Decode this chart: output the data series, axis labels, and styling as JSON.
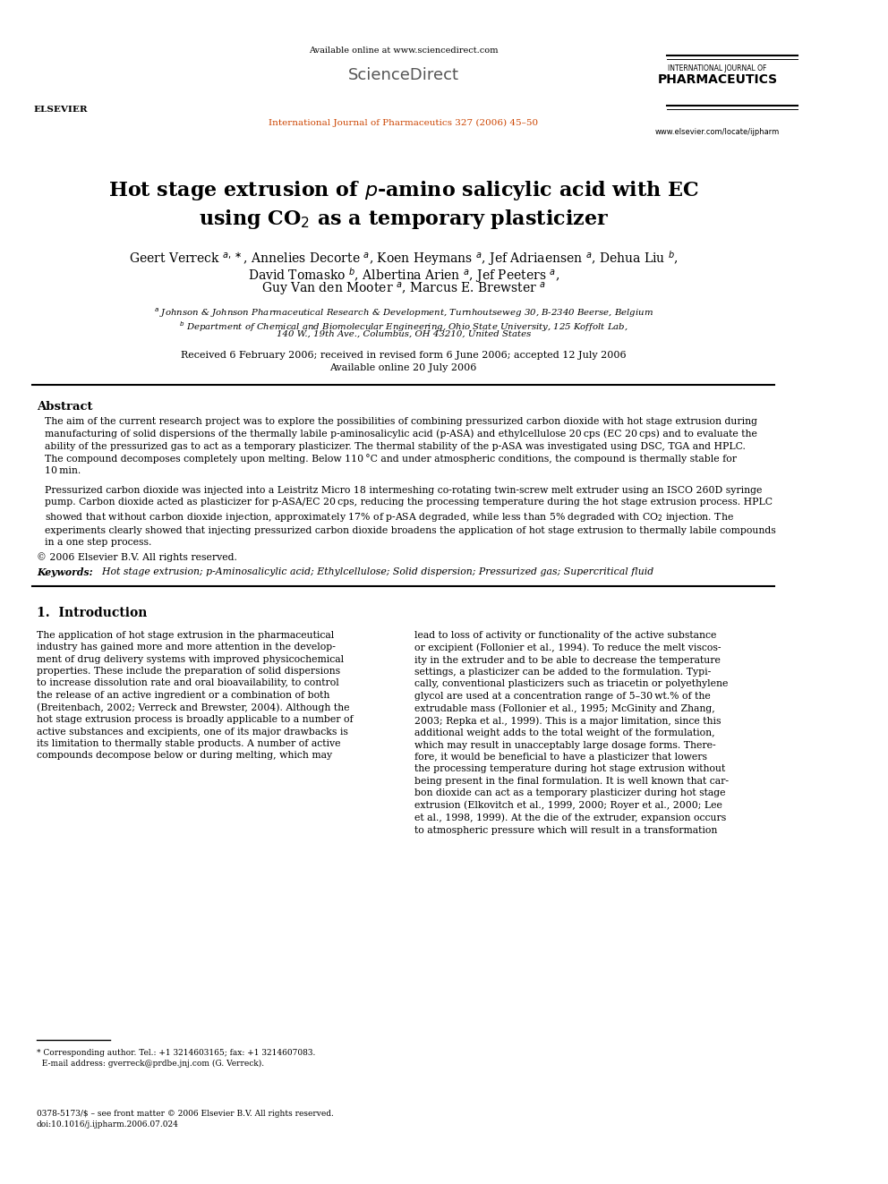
{
  "bg_color": "#ffffff",
  "page_width": 9.92,
  "page_height": 13.23,
  "header": {
    "available_online": "Available online at www.sciencedirect.com",
    "journal_line": "International Journal of Pharmaceutics 327 (2006) 45–50",
    "intl_journal_of": "INTERNATIONAL JOURNAL OF",
    "pharmaceutics": "PHARMACEUTICS",
    "website": "www.elsevier.com/locate/ijpharm",
    "elsevier": "ELSEVIER"
  },
  "title_line1": "Hot stage extrusion of p-amino salicylic acid with EC",
  "title_line2": "using CO2 as a temporary plasticizer",
  "received": "Received 6 February 2006; received in revised form 6 June 2006; accepted 12 July 2006",
  "available": "Available online 20 July 2006",
  "abstract_title": "Abstract",
  "copyright": "© 2006 Elsevier B.V. All rights reserved.",
  "keywords_label": "Keywords:",
  "keywords": "Hot stage extrusion; p-Aminosalicylic acid; Ethylcellulose; Solid dispersion; Pressurized gas; Supercritical fluid",
  "section1_title": "1.  Introduction",
  "footnote_star": "* Corresponding author. Tel.: +1 3214603165; fax: +1 3214607083.\n  E-mail address: gverreck@prdbe.jnj.com (G. Verreck).",
  "footnote_issn": "0378-5173/$ – see front matter © 2006 Elsevier B.V. All rights reserved.\ndoi:10.1016/j.ijpharm.2006.07.024",
  "link_color": "#0000cc",
  "text_color": "#000000"
}
